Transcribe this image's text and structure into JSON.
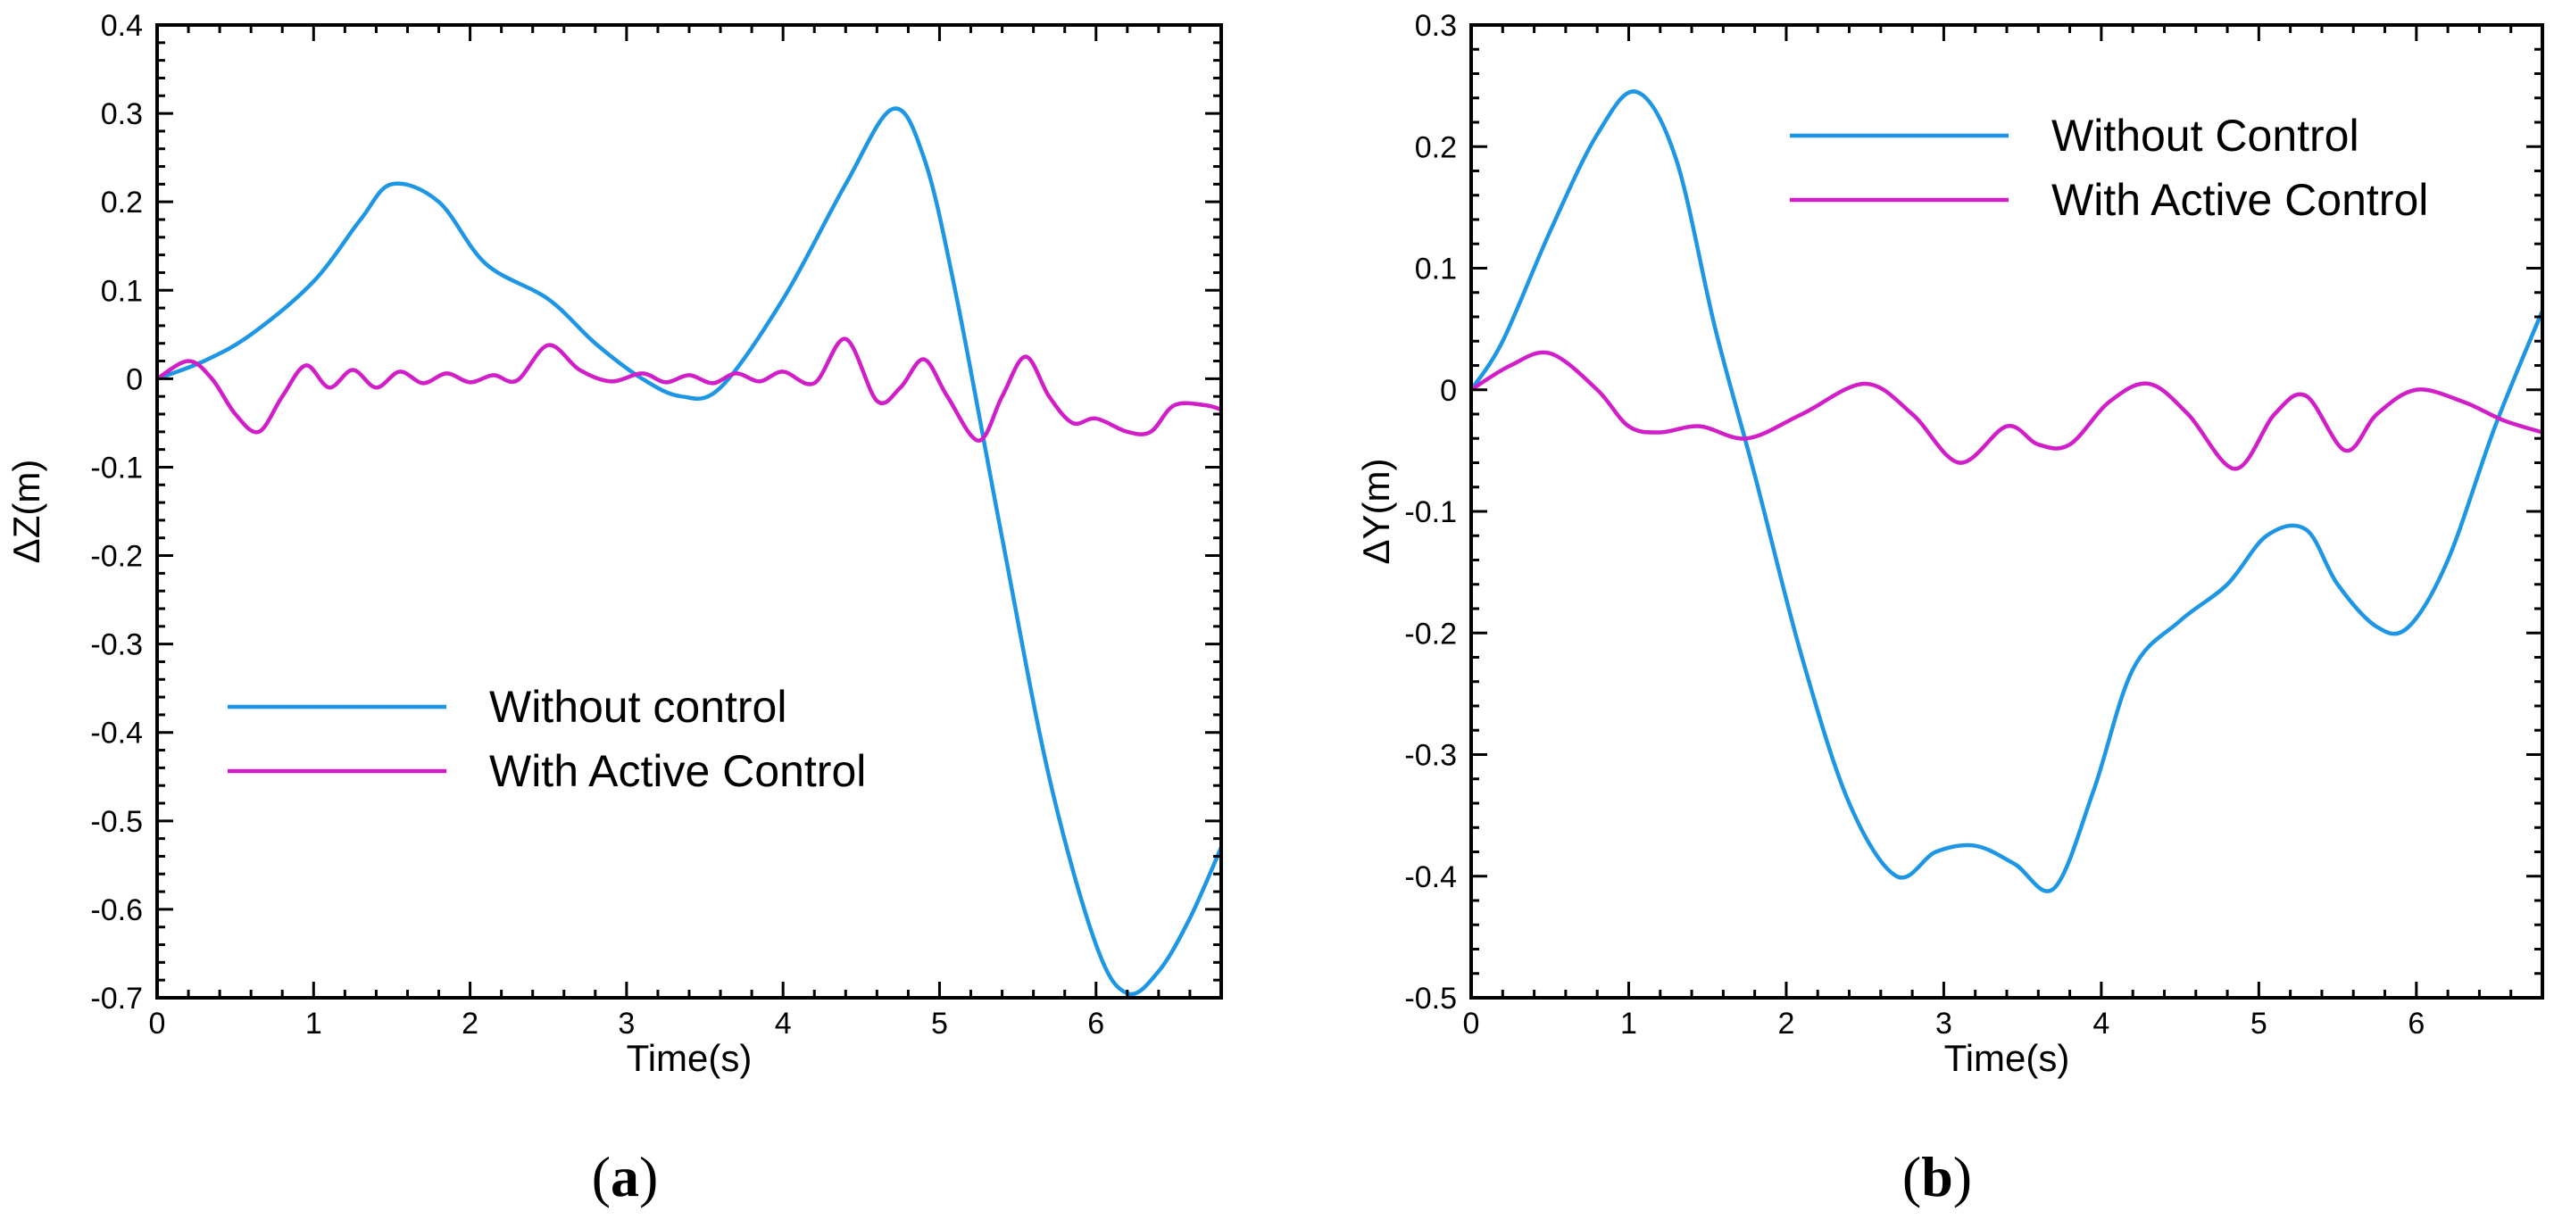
{
  "colors": {
    "without": "#1e96e6",
    "with": "#d21ec8"
  },
  "panels": [
    {
      "label": "(a)",
      "label_parts": [
        "(",
        "a",
        ")"
      ],
      "ylabel": "ΔZ(m)",
      "xlabel": "Time(s)",
      "legend": [
        "Without control",
        "With Active Control"
      ]
    },
    {
      "label": "(b)",
      "label_parts": [
        "(",
        "b",
        ")"
      ],
      "ylabel": "ΔY(m)",
      "xlabel": "Time(s)",
      "legend": [
        "Without Control",
        "With Active Control"
      ]
    }
  ],
  "chart_data": [
    {
      "type": "line",
      "title": "",
      "xlabel": "Time(s)",
      "ylabel": "ΔZ(m)",
      "xlim": [
        0,
        6.8
      ],
      "ylim": [
        -0.7,
        0.4
      ],
      "xticks": [
        0,
        1,
        2,
        3,
        4,
        5,
        6
      ],
      "yticks": [
        -0.7,
        -0.6,
        -0.5,
        -0.4,
        -0.3,
        -0.2,
        -0.1,
        0,
        0.1,
        0.2,
        0.3,
        0.4
      ],
      "xtick_labels": [
        "0",
        "1",
        "2",
        "3",
        "4",
        "5",
        "6"
      ],
      "ytick_labels": [
        "-0.7",
        "-0.6",
        "-0.5",
        "-0.4",
        "-0.3",
        "-0.2",
        "-0.1",
        "0",
        "0.1",
        "0.2",
        "0.3",
        "0.4"
      ],
      "legend_position": "lower-left",
      "series": [
        {
          "name": "Without control",
          "x": [
            0,
            0.3,
            0.6,
            1.0,
            1.3,
            1.5,
            1.8,
            2.1,
            2.5,
            2.8,
            3.1,
            3.35,
            3.6,
            4.0,
            4.4,
            4.7,
            4.9,
            5.1,
            5.4,
            5.7,
            6.0,
            6.2,
            6.4,
            6.6,
            6.8
          ],
          "y": [
            0,
            0.02,
            0.05,
            0.11,
            0.18,
            0.22,
            0.2,
            0.13,
            0.09,
            0.04,
            0.0,
            -0.02,
            -0.01,
            0.09,
            0.22,
            0.305,
            0.25,
            0.1,
            -0.18,
            -0.45,
            -0.64,
            -0.695,
            -0.67,
            -0.61,
            -0.53
          ]
        },
        {
          "name": "With Active Control",
          "x": [
            0,
            0.2,
            0.35,
            0.5,
            0.65,
            0.8,
            0.95,
            1.1,
            1.25,
            1.4,
            1.55,
            1.7,
            1.85,
            2.0,
            2.15,
            2.3,
            2.5,
            2.7,
            2.9,
            3.1,
            3.25,
            3.4,
            3.55,
            3.7,
            3.85,
            4.0,
            4.2,
            4.4,
            4.6,
            4.75,
            4.9,
            5.05,
            5.25,
            5.4,
            5.55,
            5.7,
            5.85,
            6.0,
            6.2,
            6.35,
            6.5,
            6.7,
            6.8
          ],
          "y": [
            0,
            0.02,
            0.0,
            -0.04,
            -0.06,
            -0.02,
            0.015,
            -0.01,
            0.01,
            -0.01,
            0.008,
            -0.005,
            0.006,
            -0.004,
            0.004,
            -0.002,
            0.038,
            0.01,
            -0.003,
            0.006,
            -0.004,
            0.004,
            -0.005,
            0.006,
            -0.003,
            0.008,
            -0.005,
            0.045,
            -0.025,
            -0.01,
            0.022,
            -0.02,
            -0.07,
            -0.02,
            0.025,
            -0.02,
            -0.05,
            -0.045,
            -0.06,
            -0.06,
            -0.03,
            -0.03,
            -0.035
          ]
        }
      ]
    },
    {
      "type": "line",
      "title": "",
      "xlabel": "Time(s)",
      "ylabel": "ΔY(m)",
      "xlim": [
        0,
        6.8
      ],
      "ylim": [
        -0.5,
        0.3
      ],
      "xticks": [
        0,
        1,
        2,
        3,
        4,
        5,
        6
      ],
      "yticks": [
        -0.5,
        -0.4,
        -0.3,
        -0.2,
        -0.1,
        0,
        0.1,
        0.2,
        0.3
      ],
      "xtick_labels": [
        "0",
        "1",
        "2",
        "3",
        "4",
        "5",
        "6"
      ],
      "ytick_labels": [
        "-0.5",
        "-0.4",
        "-0.3",
        "-0.2",
        "-0.1",
        "0",
        "0.1",
        "0.2",
        "0.3"
      ],
      "legend_position": "top-right",
      "series": [
        {
          "name": "Without Control",
          "x": [
            0,
            0.2,
            0.5,
            0.8,
            1.05,
            1.3,
            1.55,
            1.8,
            2.1,
            2.4,
            2.7,
            2.95,
            3.2,
            3.45,
            3.7,
            3.95,
            4.2,
            4.5,
            4.8,
            5.05,
            5.3,
            5.5,
            5.75,
            5.95,
            6.2,
            6.5,
            6.8
          ],
          "y": [
            0,
            0.04,
            0.13,
            0.21,
            0.245,
            0.19,
            0.05,
            -0.07,
            -0.22,
            -0.34,
            -0.4,
            -0.38,
            -0.375,
            -0.39,
            -0.41,
            -0.33,
            -0.23,
            -0.19,
            -0.16,
            -0.12,
            -0.115,
            -0.16,
            -0.195,
            -0.195,
            -0.14,
            -0.03,
            0.065
          ]
        },
        {
          "name": "With Active Control",
          "x": [
            0,
            0.25,
            0.5,
            0.8,
            1.0,
            1.2,
            1.45,
            1.75,
            2.1,
            2.5,
            2.8,
            3.1,
            3.4,
            3.6,
            3.8,
            4.05,
            4.3,
            4.55,
            4.85,
            5.1,
            5.3,
            5.55,
            5.75,
            6.0,
            6.3,
            6.55,
            6.8
          ],
          "y": [
            0,
            0.02,
            0.03,
            0.0,
            -0.03,
            -0.035,
            -0.03,
            -0.04,
            -0.02,
            0.005,
            -0.02,
            -0.06,
            -0.03,
            -0.045,
            -0.045,
            -0.01,
            0.005,
            -0.02,
            -0.065,
            -0.02,
            -0.005,
            -0.05,
            -0.02,
            0.0,
            -0.01,
            -0.025,
            -0.035
          ]
        }
      ]
    }
  ]
}
